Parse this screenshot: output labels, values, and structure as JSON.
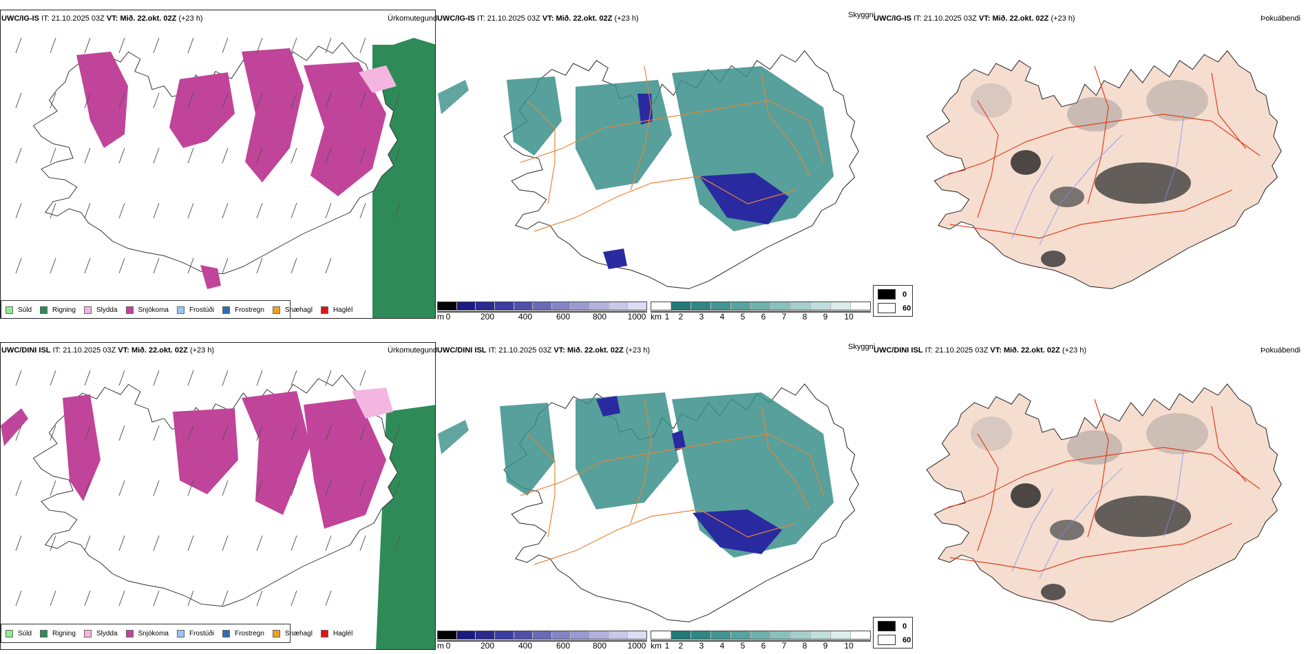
{
  "rows": [
    {
      "model": "UWC/IG-IS",
      "it_label": "IT:",
      "it_value": "21.10.2025 03Z",
      "vt_label": "VT:",
      "vt_value": "Mið. 22.okt. 02Z",
      "lead": "(+23 h)"
    },
    {
      "model": "UWC/DINI ISL",
      "it_label": "IT:",
      "it_value": "21.10.2025 03Z",
      "vt_label": "VT:",
      "vt_value": "Mið. 22.okt. 02Z",
      "lead": "(+23 h)"
    }
  ],
  "panels": {
    "precip_type_title": "Úrkomutegund",
    "visibility_title": "Skyggni",
    "fog_title": "Þokuábendi"
  },
  "precip_legend": [
    {
      "label": "Súld",
      "color": "#90ee90"
    },
    {
      "label": "Rigning",
      "color": "#2e8b57"
    },
    {
      "label": "Slydda",
      "color": "#f4b6e0"
    },
    {
      "label": "Snjókoma",
      "color": "#c0449a"
    },
    {
      "label": "Frostúði",
      "color": "#99c4f4"
    },
    {
      "label": "Frostregn",
      "color": "#2e6db4"
    },
    {
      "label": "Snæhagl",
      "color": "#f0a020"
    },
    {
      "label": "Haglél",
      "color": "#e81010"
    }
  ],
  "visibility_m_bar": {
    "unit": "m",
    "ticks": [
      "0",
      "200",
      "400",
      "600",
      "800",
      "1000"
    ],
    "colors": [
      "#000000",
      "#1a1a80",
      "#2a2a90",
      "#3c3ca0",
      "#5050aa",
      "#6a6ab6",
      "#8484c4",
      "#9a9ad0",
      "#b2b2dc",
      "#c8c8e8",
      "#dcdcf4"
    ]
  },
  "visibility_km_bar": {
    "unit": "km",
    "ticks": [
      "1",
      "2",
      "3",
      "4",
      "5",
      "6",
      "7",
      "8",
      "9",
      "10"
    ],
    "colors": [
      "#ffffff",
      "#1f7a78",
      "#2f8886",
      "#419692",
      "#57a39f",
      "#6fb1ad",
      "#8ac0bc",
      "#a5cfcb",
      "#c0dedb",
      "#dcedeb",
      "#ffffff"
    ]
  },
  "fog_legend": [
    {
      "label": "0",
      "color": "#000000"
    },
    {
      "label": "60",
      "color": "#ffffff"
    }
  ],
  "colors": {
    "snow": "#c0449a",
    "rain": "#2e8b57",
    "sleet": "#f4b6e0",
    "vis_teal": "#3a8f8a",
    "vis_low": "#2a2aa0",
    "land_fog": "#f5ddd0",
    "road_orange": "#e8843a",
    "road_red": "#e0401c",
    "river_blue": "#7a90f0"
  }
}
